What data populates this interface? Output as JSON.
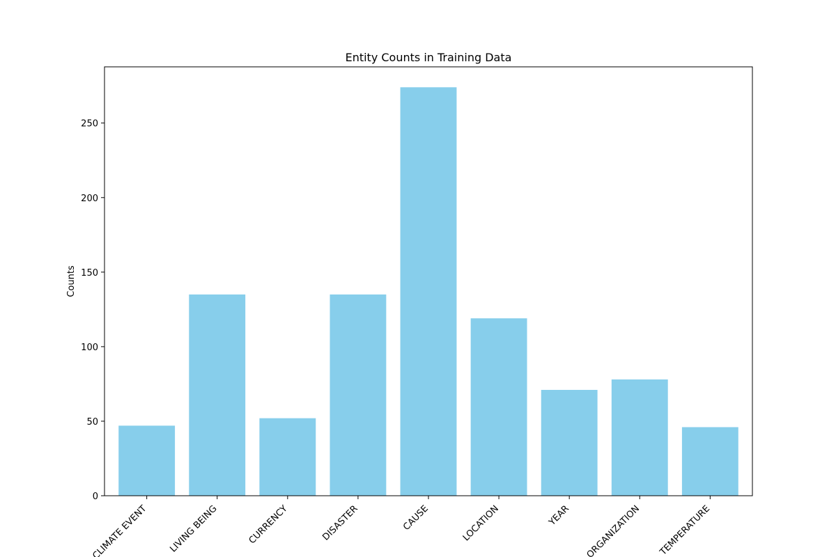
{
  "chart_data": {
    "type": "bar",
    "title": "Entity Counts in Training Data",
    "xlabel": "",
    "ylabel": "Counts",
    "categories": [
      "CLIMATE EVENT",
      "LIVING BEING",
      "CURRENCY",
      "DISASTER",
      "CAUSE",
      "LOCATION",
      "YEAR",
      "ORGANIZATION",
      "TEMPERATURE"
    ],
    "values": [
      47,
      135,
      52,
      135,
      274,
      119,
      71,
      78,
      46
    ],
    "ylim": [
      0,
      287.7
    ],
    "yticks": [
      0,
      50,
      100,
      150,
      200,
      250
    ],
    "bar_color": "#87CEEB",
    "grid": false
  }
}
